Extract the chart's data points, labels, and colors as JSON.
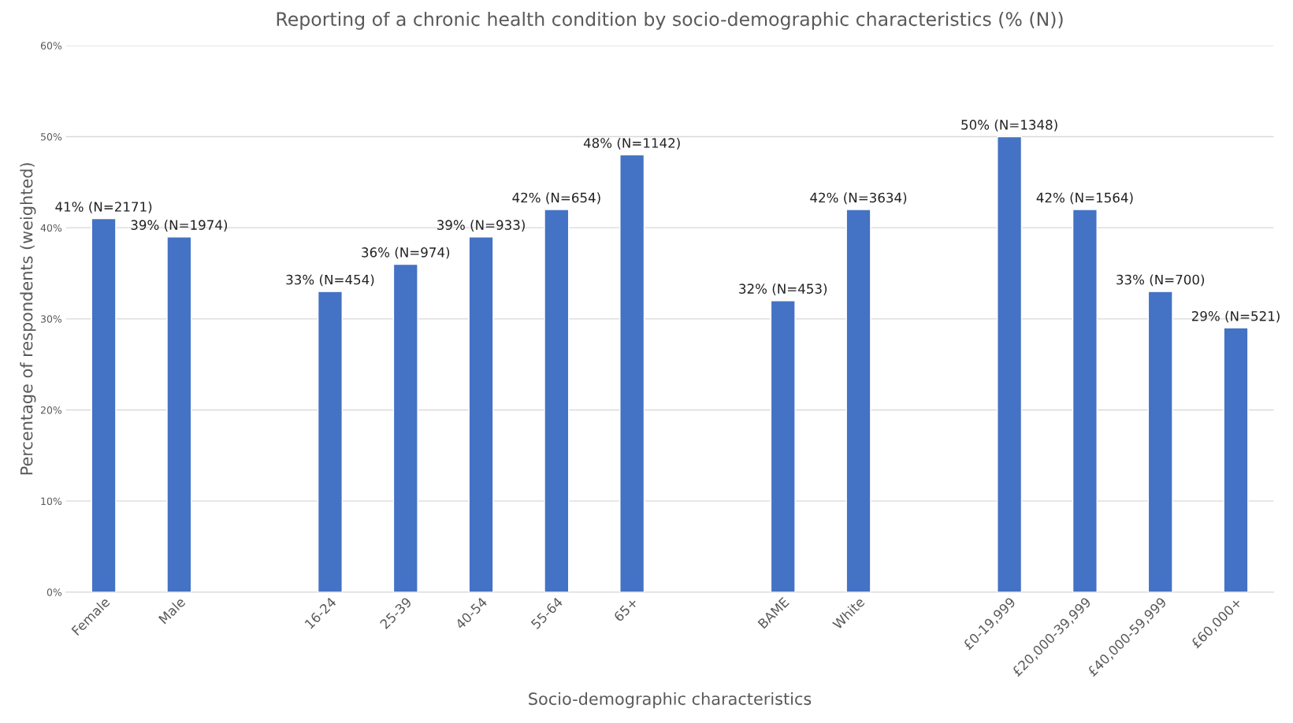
{
  "chart_data": {
    "type": "bar",
    "title": "Reporting of a chronic health condition by socio-demographic characteristics (% (N))",
    "xlabel": "Socio-demographic characteristics",
    "ylabel": "Percentage of respondents (weighted)",
    "categories": [
      "Female",
      "Male",
      null,
      "16-24",
      "25-39",
      "40-54",
      "55-64",
      "65+",
      null,
      "BAME",
      "White",
      null,
      "£0-19,999",
      "£20,000-39,999",
      "£40,000-59,999",
      "£60,000+"
    ],
    "values": [
      41,
      39,
      null,
      33,
      36,
      39,
      42,
      48,
      null,
      32,
      42,
      null,
      50,
      42,
      33,
      29
    ],
    "value_labels": [
      "41% (N=2171)",
      "39% (N=1974)",
      null,
      "33% (N=454)",
      "36% (N=974)",
      "39% (N=933)",
      "42% (N=654)",
      "48% (N=1142)",
      null,
      "32% (N=453)",
      "42% (N=3634)",
      null,
      "50% (N=1348)",
      "42% (N=1564)",
      "33% (N=700)",
      "29% (N=521)"
    ],
    "color": "#4472c4",
    "ylim": [
      0,
      60
    ],
    "yticks": [
      {
        "value": 0,
        "label": "0%"
      },
      {
        "value": 10,
        "label": "10%"
      },
      {
        "value": 20,
        "label": "20%"
      },
      {
        "value": 30,
        "label": "30%"
      },
      {
        "value": 40,
        "label": "40%"
      },
      {
        "value": 50,
        "label": "50%"
      },
      {
        "value": 60,
        "label": "60%"
      }
    ],
    "grid": "y"
  }
}
